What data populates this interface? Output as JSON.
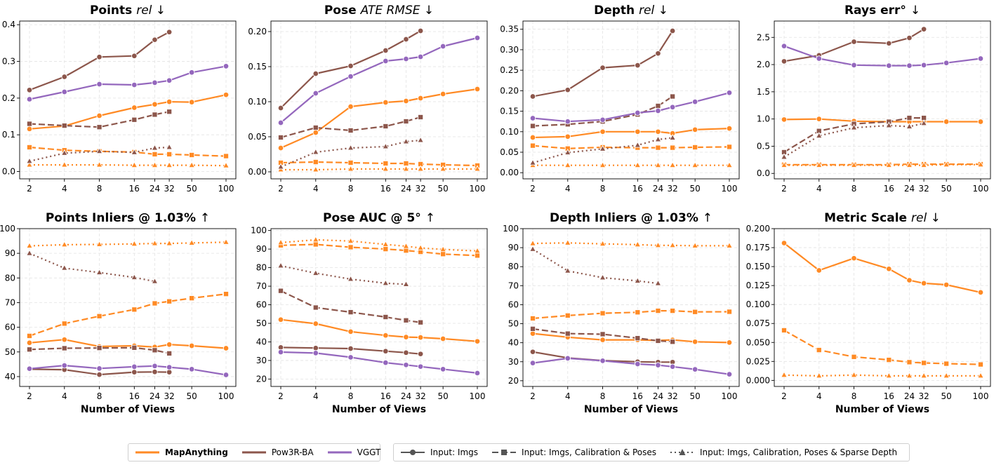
{
  "chart_data": [
    {
      "type": "line",
      "title": "Points",
      "metric": "rel",
      "direction": "↓",
      "xlabel": "",
      "x": [
        2,
        4,
        8,
        16,
        24,
        32,
        50,
        100
      ],
      "ylim": [
        -0.02,
        0.41
      ],
      "yticks": [
        "0.0",
        "0.1",
        "0.2",
        "0.3",
        "0.4"
      ],
      "ytick_values": [
        0,
        0.1,
        0.2,
        0.3,
        0.4
      ],
      "series": [
        {
          "name": "MapAnything",
          "input": "imgs",
          "values": [
            0.116,
            0.124,
            0.152,
            0.174,
            0.183,
            0.19,
            0.189,
            0.209
          ]
        },
        {
          "name": "MapAnything",
          "input": "calib_poses",
          "values": [
            0.066,
            0.058,
            0.055,
            0.053,
            0.047,
            0.047,
            0.045,
            0.042
          ]
        },
        {
          "name": "MapAnything",
          "input": "calib_poses_depth",
          "values": [
            0.018,
            0.018,
            0.018,
            0.017,
            0.017,
            0.017,
            0.017,
            0.016
          ]
        },
        {
          "name": "Pow3R-BA",
          "input": "imgs",
          "values": [
            0.222,
            0.258,
            0.312,
            0.315,
            0.359,
            0.38,
            null,
            null
          ]
        },
        {
          "name": "Pow3R-BA",
          "input": "calib_poses",
          "values": [
            0.13,
            0.125,
            0.121,
            0.141,
            0.155,
            0.163,
            null,
            null
          ]
        },
        {
          "name": "Pow3R-BA",
          "input": "calib_poses_depth",
          "values": [
            0.028,
            0.05,
            0.055,
            0.052,
            0.064,
            0.066,
            null,
            null
          ]
        },
        {
          "name": "VGGT",
          "input": "imgs",
          "values": [
            0.197,
            0.217,
            0.238,
            0.236,
            0.242,
            0.248,
            0.27,
            0.287
          ]
        }
      ]
    },
    {
      "type": "line",
      "title": "Pose",
      "metric": "ATE RMSE",
      "direction": "↓",
      "xlabel": "",
      "x": [
        2,
        4,
        8,
        16,
        24,
        32,
        50,
        100
      ],
      "ylim": [
        -0.01,
        0.215
      ],
      "yticks": [
        "0.00",
        "0.05",
        "0.10",
        "0.15",
        "0.20"
      ],
      "ytick_values": [
        0,
        0.05,
        0.1,
        0.15,
        0.2
      ],
      "series": [
        {
          "name": "MapAnything",
          "input": "imgs",
          "values": [
            0.034,
            0.056,
            0.093,
            0.099,
            0.101,
            0.105,
            0.111,
            0.118
          ]
        },
        {
          "name": "MapAnything",
          "input": "calib_poses",
          "values": [
            0.013,
            0.014,
            0.013,
            0.012,
            0.012,
            0.011,
            0.01,
            0.009
          ]
        },
        {
          "name": "MapAnything",
          "input": "calib_poses_depth",
          "values": [
            0.003,
            0.003,
            0.004,
            0.004,
            0.004,
            0.004,
            0.004,
            0.004
          ]
        },
        {
          "name": "Pow3R-BA",
          "input": "imgs",
          "values": [
            0.091,
            0.14,
            0.151,
            0.173,
            0.189,
            0.201,
            null,
            null
          ]
        },
        {
          "name": "Pow3R-BA",
          "input": "calib_poses",
          "values": [
            0.049,
            0.063,
            0.059,
            0.065,
            0.072,
            0.078,
            null,
            null
          ]
        },
        {
          "name": "Pow3R-BA",
          "input": "calib_poses_depth",
          "values": [
            0.007,
            0.028,
            0.034,
            0.036,
            0.043,
            0.045,
            null,
            null
          ]
        },
        {
          "name": "VGGT",
          "input": "imgs",
          "values": [
            0.07,
            0.112,
            0.136,
            0.158,
            0.161,
            0.164,
            0.179,
            0.191
          ]
        }
      ]
    },
    {
      "type": "line",
      "title": "Depth",
      "metric": "rel",
      "direction": "↓",
      "xlabel": "",
      "x": [
        2,
        4,
        8,
        16,
        24,
        32,
        50,
        100
      ],
      "ylim": [
        -0.015,
        0.37
      ],
      "yticks": [
        "0.00",
        "0.05",
        "0.10",
        "0.15",
        "0.20",
        "0.25",
        "0.30",
        "0.35"
      ],
      "ytick_values": [
        0,
        0.05,
        0.1,
        0.15,
        0.2,
        0.25,
        0.3,
        0.35
      ],
      "series": [
        {
          "name": "MapAnything",
          "input": "imgs",
          "values": [
            0.086,
            0.088,
            0.1,
            0.1,
            0.1,
            0.096,
            0.105,
            0.108
          ]
        },
        {
          "name": "MapAnything",
          "input": "calib_poses",
          "values": [
            0.066,
            0.059,
            0.062,
            0.061,
            0.061,
            0.061,
            0.062,
            0.063
          ]
        },
        {
          "name": "MapAnything",
          "input": "calib_poses_depth",
          "values": [
            0.018,
            0.018,
            0.018,
            0.018,
            0.018,
            0.018,
            0.018,
            0.018
          ]
        },
        {
          "name": "Pow3R-BA",
          "input": "imgs",
          "values": [
            0.186,
            0.202,
            0.256,
            0.262,
            0.291,
            0.346,
            null,
            null
          ]
        },
        {
          "name": "Pow3R-BA",
          "input": "calib_poses",
          "values": [
            0.114,
            0.118,
            0.125,
            0.142,
            0.163,
            0.186,
            null,
            null
          ]
        },
        {
          "name": "Pow3R-BA",
          "input": "calib_poses_depth",
          "values": [
            0.024,
            0.049,
            0.058,
            0.067,
            0.081,
            0.085,
            null,
            null
          ]
        },
        {
          "name": "VGGT",
          "input": "imgs",
          "values": [
            0.133,
            0.125,
            0.129,
            0.146,
            0.151,
            0.16,
            0.173,
            0.195
          ]
        }
      ]
    },
    {
      "type": "line",
      "title": "Rays err°",
      "metric": "",
      "direction": "↓",
      "xlabel": "",
      "x": [
        2,
        4,
        8,
        16,
        24,
        32,
        50,
        100
      ],
      "ylim": [
        -0.1,
        2.8
      ],
      "yticks": [
        "0.0",
        "0.5",
        "1.0",
        "1.5",
        "2.0",
        "2.5"
      ],
      "ytick_values": [
        0,
        0.5,
        1.0,
        1.5,
        2.0,
        2.5
      ],
      "series": [
        {
          "name": "MapAnything",
          "input": "imgs",
          "values": [
            0.99,
            1.0,
            0.96,
            0.95,
            0.95,
            0.95,
            0.95,
            0.95
          ]
        },
        {
          "name": "MapAnything",
          "input": "calib_poses",
          "values": [
            0.16,
            0.16,
            0.16,
            0.16,
            0.17,
            0.17,
            0.17,
            0.17
          ]
        },
        {
          "name": "MapAnything",
          "input": "calib_poses_depth",
          "values": [
            0.15,
            0.15,
            0.15,
            0.15,
            0.15,
            0.15,
            0.16,
            0.16
          ]
        },
        {
          "name": "Pow3R-BA",
          "input": "imgs",
          "values": [
            2.06,
            2.17,
            2.42,
            2.39,
            2.49,
            2.65,
            null,
            null
          ]
        },
        {
          "name": "Pow3R-BA",
          "input": "calib_poses",
          "values": [
            0.39,
            0.78,
            0.91,
            0.95,
            1.02,
            1.02,
            null,
            null
          ]
        },
        {
          "name": "Pow3R-BA",
          "input": "calib_poses_depth",
          "values": [
            0.3,
            0.69,
            0.84,
            0.88,
            0.86,
            0.92,
            null,
            null
          ]
        },
        {
          "name": "VGGT",
          "input": "imgs",
          "values": [
            2.34,
            2.11,
            1.99,
            1.98,
            1.98,
            1.99,
            2.03,
            2.11
          ]
        }
      ]
    },
    {
      "type": "line",
      "title": "Points Inliers @ 1.03%",
      "metric": "",
      "direction": "↑",
      "xlabel": "Number of Views",
      "x": [
        2,
        4,
        8,
        16,
        24,
        32,
        50,
        100
      ],
      "ylim": [
        36,
        100
      ],
      "yticks": [
        "40",
        "50",
        "60",
        "70",
        "80",
        "90",
        "100"
      ],
      "ytick_values": [
        40,
        50,
        60,
        70,
        80,
        90,
        100
      ],
      "series": [
        {
          "name": "MapAnything",
          "input": "imgs",
          "values": [
            53.7,
            55.0,
            52.2,
            52.5,
            52.0,
            53.0,
            52.5,
            51.5
          ]
        },
        {
          "name": "MapAnything",
          "input": "calib_poses",
          "values": [
            56.5,
            61.5,
            64.5,
            67.2,
            69.7,
            70.5,
            71.8,
            73.5
          ]
        },
        {
          "name": "MapAnything",
          "input": "calib_poses_depth",
          "values": [
            93.0,
            93.5,
            93.6,
            93.8,
            94.0,
            94.0,
            94.2,
            94.5
          ]
        },
        {
          "name": "Pow3R-BA",
          "input": "imgs",
          "values": [
            43.0,
            42.8,
            40.8,
            41.8,
            41.9,
            41.8,
            null,
            null
          ]
        },
        {
          "name": "Pow3R-BA",
          "input": "calib_poses",
          "values": [
            51.0,
            51.5,
            51.6,
            51.7,
            50.7,
            49.4,
            null,
            null
          ]
        },
        {
          "name": "Pow3R-BA",
          "input": "calib_poses_depth",
          "values": [
            90.0,
            84.0,
            82.2,
            80.2,
            78.6,
            null,
            null,
            null
          ]
        },
        {
          "name": "VGGT",
          "input": "imgs",
          "values": [
            43.2,
            44.5,
            43.3,
            44.0,
            44.3,
            43.8,
            43.0,
            40.7
          ]
        }
      ]
    },
    {
      "type": "line",
      "title": "Pose AUC @ 5°",
      "metric": "",
      "direction": "↑",
      "xlabel": "Number of Views",
      "x": [
        2,
        4,
        8,
        16,
        24,
        32,
        50,
        100
      ],
      "ylim": [
        16,
        101
      ],
      "yticks": [
        "20",
        "30",
        "40",
        "50",
        "60",
        "70",
        "80",
        "90",
        "100"
      ],
      "ytick_values": [
        20,
        30,
        40,
        50,
        60,
        70,
        80,
        90,
        100
      ],
      "series": [
        {
          "name": "MapAnything",
          "input": "imgs",
          "values": [
            52.0,
            49.8,
            45.5,
            43.5,
            42.6,
            42.4,
            41.7,
            40.3
          ]
        },
        {
          "name": "MapAnything",
          "input": "calib_poses",
          "values": [
            92.0,
            92.5,
            91.0,
            90.0,
            89.2,
            88.5,
            87.3,
            86.5
          ]
        },
        {
          "name": "MapAnything",
          "input": "calib_poses_depth",
          "values": [
            93.5,
            95.0,
            94.3,
            92.5,
            91.5,
            90.6,
            89.8,
            89.0
          ]
        },
        {
          "name": "Pow3R-BA",
          "input": "imgs",
          "values": [
            37.0,
            36.7,
            36.4,
            35.0,
            34.2,
            33.5,
            null,
            null
          ]
        },
        {
          "name": "Pow3R-BA",
          "input": "calib_poses",
          "values": [
            67.5,
            58.5,
            56.0,
            53.4,
            51.6,
            50.5,
            null,
            null
          ]
        },
        {
          "name": "Pow3R-BA",
          "input": "calib_poses_depth",
          "values": [
            81.0,
            77.0,
            73.8,
            71.6,
            71.0,
            null,
            null,
            null
          ]
        },
        {
          "name": "VGGT",
          "input": "imgs",
          "values": [
            34.5,
            34.0,
            31.7,
            28.8,
            27.6,
            26.7,
            25.3,
            23.2
          ]
        }
      ]
    },
    {
      "type": "line",
      "title": "Depth Inliers @ 1.03%",
      "metric": "",
      "direction": "↑",
      "xlabel": "Number of Views",
      "x": [
        2,
        4,
        8,
        16,
        24,
        32,
        50,
        100
      ],
      "ylim": [
        17,
        100
      ],
      "yticks": [
        "20",
        "30",
        "40",
        "50",
        "60",
        "70",
        "80",
        "90",
        "100"
      ],
      "ytick_values": [
        20,
        30,
        40,
        50,
        60,
        70,
        80,
        90,
        100
      ],
      "series": [
        {
          "name": "MapAnything",
          "input": "imgs",
          "values": [
            44.8,
            42.9,
            41.5,
            41.5,
            41.2,
            41.5,
            40.5,
            40.1
          ]
        },
        {
          "name": "MapAnything",
          "input": "calib_poses",
          "values": [
            52.8,
            54.3,
            55.5,
            56.0,
            56.8,
            56.8,
            56.2,
            56.3
          ]
        },
        {
          "name": "MapAnything",
          "input": "calib_poses_depth",
          "values": [
            92.2,
            92.5,
            92.0,
            91.6,
            91.2,
            91.2,
            91.0,
            91.0
          ]
        },
        {
          "name": "Pow3R-BA",
          "input": "imgs",
          "values": [
            35.2,
            32.0,
            30.6,
            30.0,
            29.8,
            29.8,
            null,
            null
          ]
        },
        {
          "name": "Pow3R-BA",
          "input": "calib_poses",
          "values": [
            47.3,
            44.8,
            44.5,
            42.4,
            41.0,
            40.5,
            null,
            null
          ]
        },
        {
          "name": "Pow3R-BA",
          "input": "calib_poses_depth",
          "values": [
            89.2,
            77.8,
            74.2,
            72.5,
            71.2,
            null,
            null,
            null
          ]
        },
        {
          "name": "VGGT",
          "input": "imgs",
          "values": [
            29.3,
            31.8,
            30.5,
            28.8,
            28.2,
            27.4,
            26.0,
            23.4
          ]
        }
      ]
    },
    {
      "type": "line",
      "title": "Metric Scale",
      "metric": "rel",
      "direction": "↓",
      "xlabel": "Number of Views",
      "x": [
        2,
        4,
        8,
        16,
        24,
        32,
        50,
        100
      ],
      "ylim": [
        -0.008,
        0.2
      ],
      "yticks": [
        "0.000",
        "0.025",
        "0.050",
        "0.075",
        "0.100",
        "0.125",
        "0.150",
        "0.175",
        "0.200"
      ],
      "ytick_values": [
        0,
        0.025,
        0.05,
        0.075,
        0.1,
        0.125,
        0.15,
        0.175,
        0.2
      ],
      "series": [
        {
          "name": "MapAnything",
          "input": "imgs",
          "values": [
            0.181,
            0.145,
            0.161,
            0.147,
            0.132,
            0.128,
            0.126,
            0.116
          ]
        },
        {
          "name": "MapAnything",
          "input": "calib_poses",
          "values": [
            0.066,
            0.04,
            0.031,
            0.027,
            0.024,
            0.023,
            0.022,
            0.021
          ]
        },
        {
          "name": "MapAnything",
          "input": "calib_poses_depth",
          "values": [
            0.007,
            0.006,
            0.007,
            0.006,
            0.006,
            0.006,
            0.006,
            0.006
          ]
        }
      ]
    }
  ],
  "x_tick_labels": [
    "2",
    "4",
    "8",
    "16",
    "24",
    "32",
    "50",
    "100"
  ],
  "colors": {
    "MapAnything": "#ff8a24",
    "Pow3R-BA": "#8c564b",
    "VGGT": "#9467bd",
    "grid": "#e3e3e3",
    "legend_input": "#555555"
  },
  "legend": {
    "methods": [
      {
        "key": "MapAnything",
        "label": "MapAnything",
        "bold": true
      },
      {
        "key": "Pow3R-BA",
        "label": "Pow3R-BA",
        "bold": false
      },
      {
        "key": "VGGT",
        "label": "VGGT",
        "bold": false
      }
    ],
    "inputs": [
      {
        "key": "imgs",
        "label": "Input: Imgs",
        "dash": "solid",
        "marker": "circle"
      },
      {
        "key": "calib_poses",
        "label": "Input: Imgs, Calibration & Poses",
        "dash": "dashed",
        "marker": "square"
      },
      {
        "key": "calib_poses_depth",
        "label": "Input: Imgs, Calibration, Poses & Sparse Depth",
        "dash": "dotted",
        "marker": "triangle"
      }
    ]
  }
}
